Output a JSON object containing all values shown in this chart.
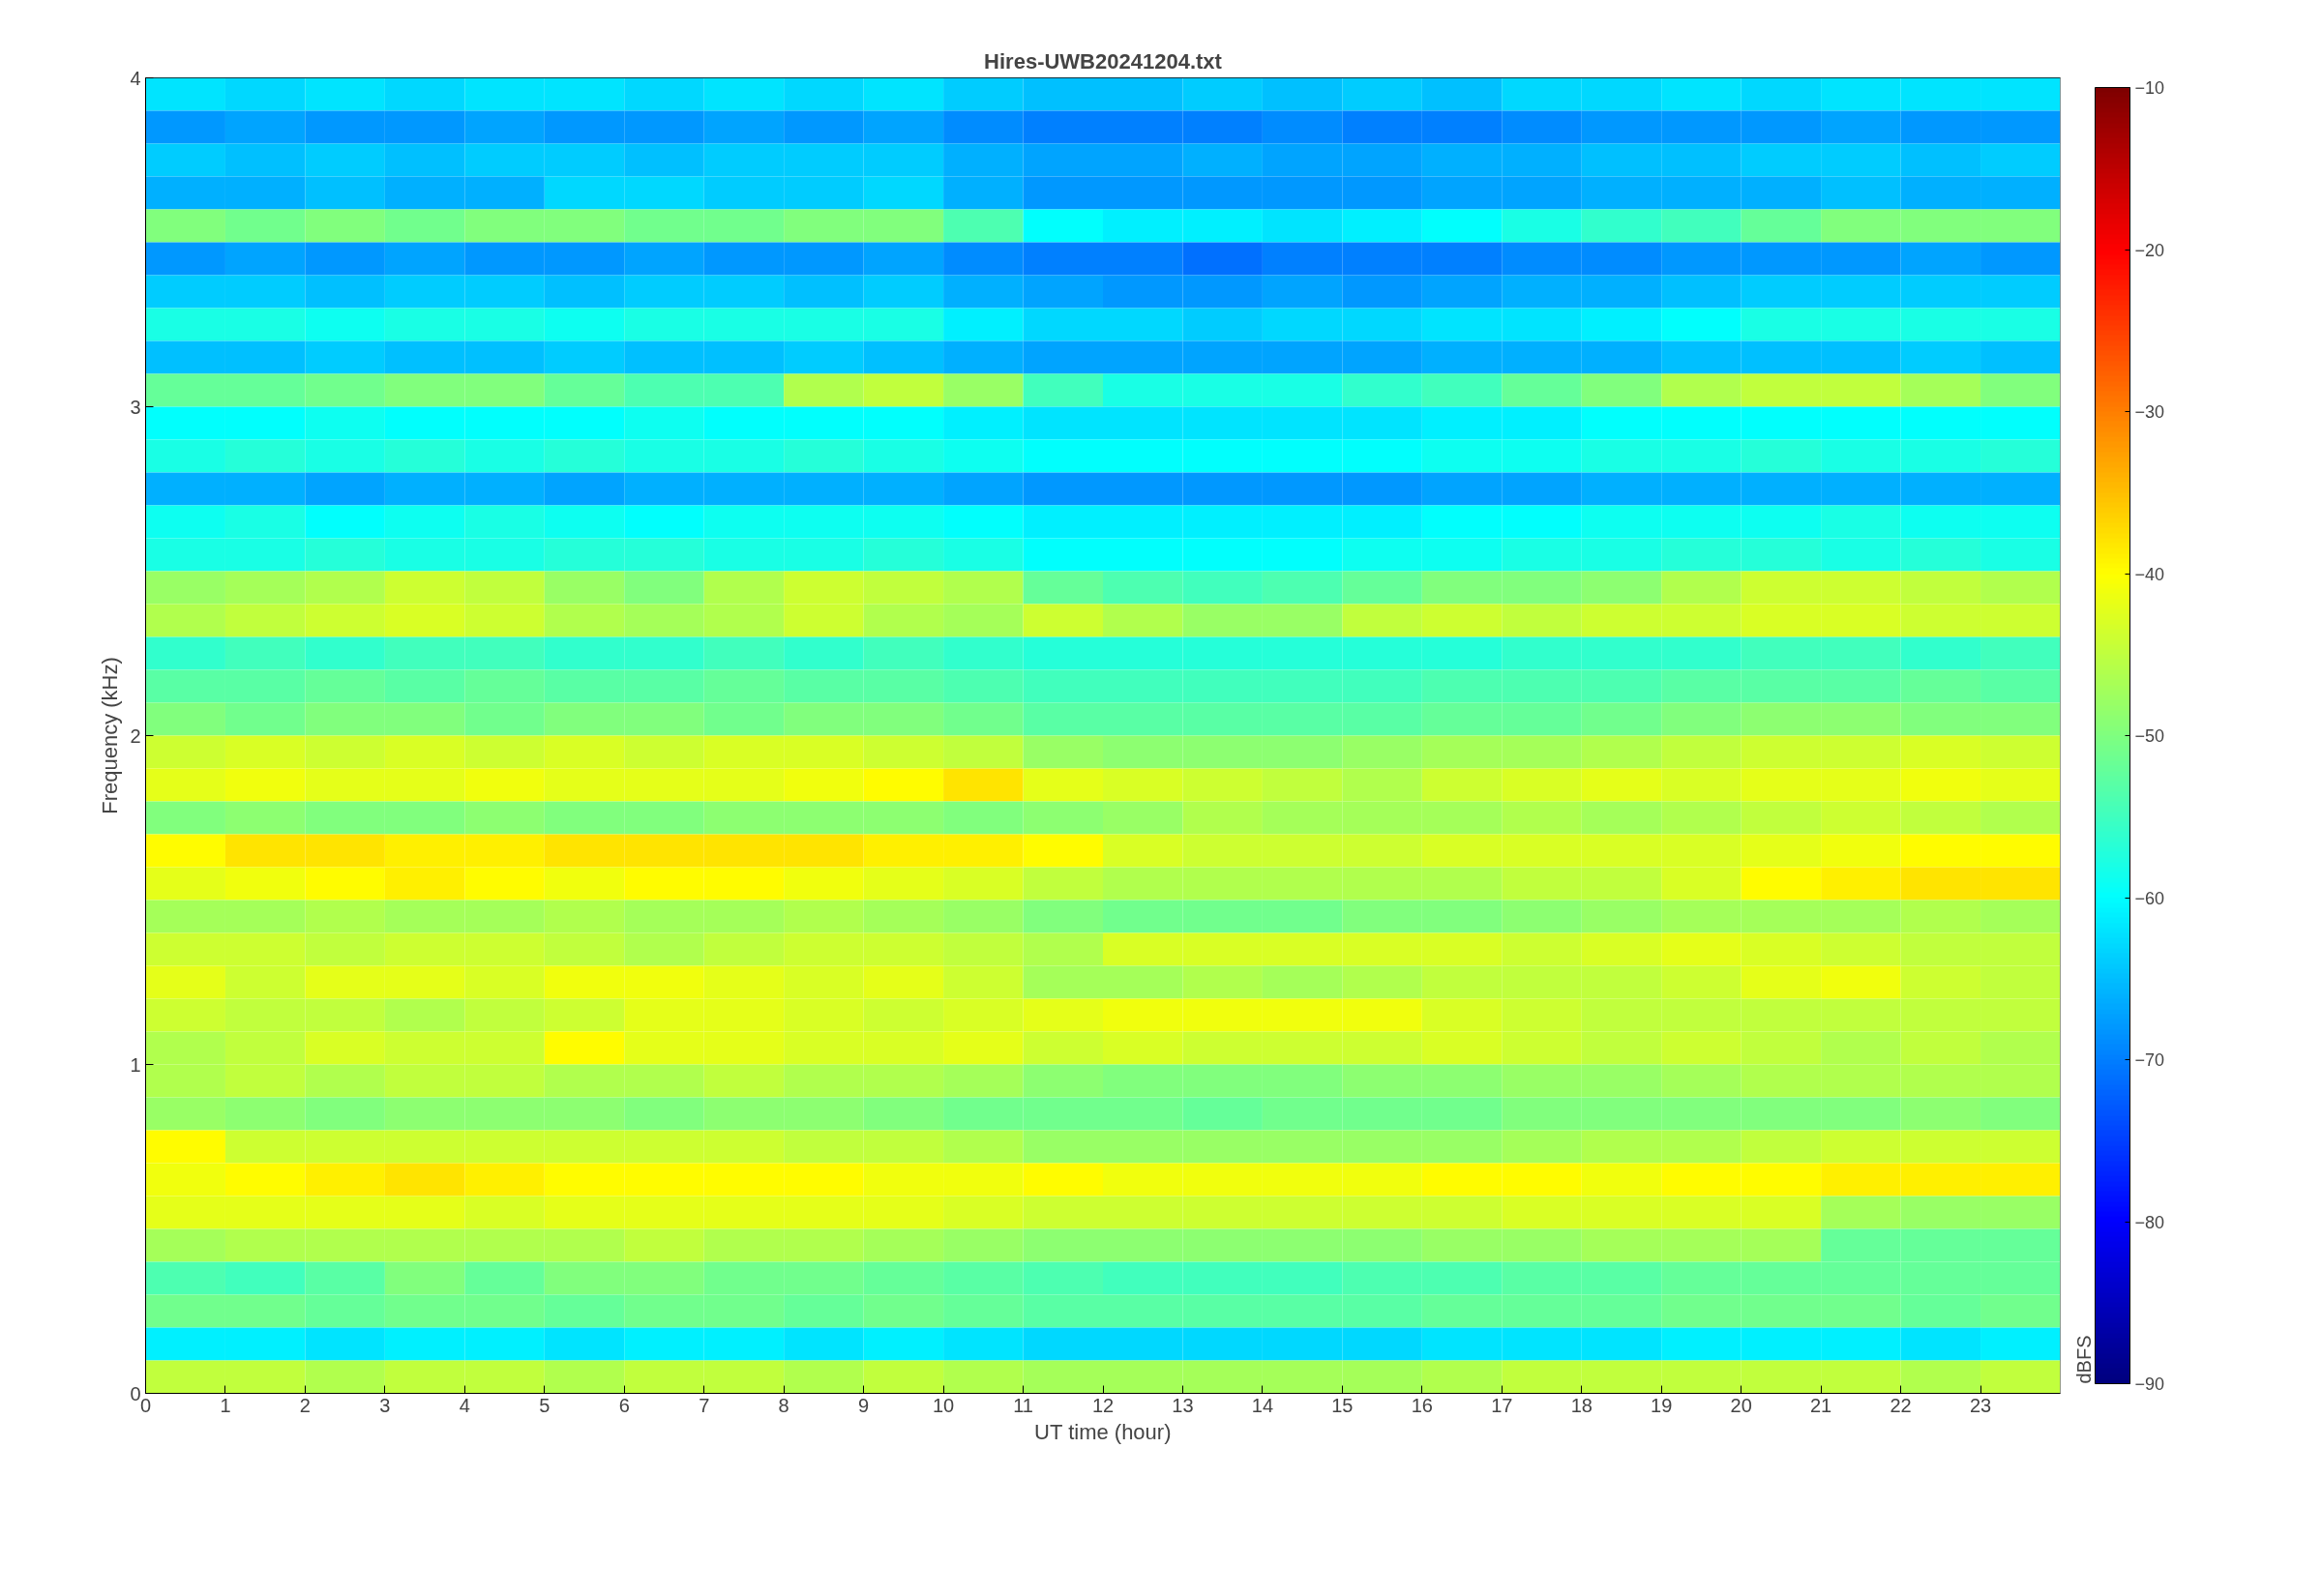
{
  "chart_data": {
    "type": "heatmap",
    "title": "Hires-UWB20241204.txt",
    "xlabel": "UT time (hour)",
    "ylabel": "Frequency (kHz)",
    "clabel": "dBFS",
    "x": [
      0.5,
      1.5,
      2.5,
      3.5,
      4.5,
      5.5,
      6.5,
      7.5,
      8.5,
      9.5,
      10.5,
      11.5,
      12.5,
      13.5,
      14.5,
      15.5,
      16.5,
      17.5,
      18.5,
      19.5,
      20.5,
      21.5,
      22.5,
      23.5
    ],
    "xlim": [
      0,
      24
    ],
    "xticks": [
      0,
      1,
      2,
      3,
      4,
      5,
      6,
      7,
      8,
      9,
      10,
      11,
      12,
      13,
      14,
      15,
      16,
      17,
      18,
      19,
      20,
      21,
      22,
      23
    ],
    "ylim": [
      0,
      4
    ],
    "yticks": [
      0,
      1,
      2,
      3,
      4
    ],
    "clim": [
      -90,
      -10
    ],
    "cticks": [
      -90,
      -80,
      -70,
      -60,
      -50,
      -40,
      -30,
      -20,
      -10
    ],
    "grid": false,
    "cells": [
      [
        -62,
        -63,
        -62,
        -63,
        -62,
        -62,
        -63,
        -62,
        -63,
        -62,
        -64,
        -65,
        -65,
        -64,
        -65,
        -64,
        -65,
        -63,
        -63,
        -62,
        -63,
        -62,
        -62,
        -62
      ],
      [
        -68,
        -67,
        -68,
        -68,
        -67,
        -68,
        -68,
        -67,
        -68,
        -67,
        -69,
        -70,
        -70,
        -70,
        -69,
        -70,
        -70,
        -69,
        -68,
        -68,
        -68,
        -67,
        -68,
        -68
      ],
      [
        -64,
        -65,
        -64,
        -65,
        -64,
        -64,
        -65,
        -64,
        -64,
        -64,
        -66,
        -67,
        -67,
        -66,
        -67,
        -67,
        -66,
        -66,
        -65,
        -65,
        -64,
        -64,
        -65,
        -64
      ],
      [
        -66,
        -66,
        -65,
        -66,
        -66,
        -63,
        -63,
        -64,
        -64,
        -63,
        -66,
        -68,
        -68,
        -68,
        -68,
        -68,
        -67,
        -67,
        -66,
        -66,
        -66,
        -65,
        -66,
        -66
      ],
      [
        -50,
        -51,
        -50,
        -51,
        -50,
        -50,
        -51,
        -51,
        -50,
        -50,
        -54,
        -60,
        -61,
        -61,
        -62,
        -61,
        -60,
        -58,
        -56,
        -55,
        -52,
        -50,
        -50,
        -50
      ],
      [
        -68,
        -67,
        -68,
        -67,
        -68,
        -68,
        -67,
        -68,
        -68,
        -67,
        -69,
        -70,
        -70,
        -71,
        -70,
        -70,
        -70,
        -69,
        -69,
        -68,
        -68,
        -68,
        -67,
        -68
      ],
      [
        -64,
        -64,
        -65,
        -64,
        -64,
        -65,
        -64,
        -64,
        -65,
        -64,
        -66,
        -67,
        -68,
        -68,
        -67,
        -68,
        -67,
        -66,
        -66,
        -65,
        -64,
        -64,
        -64,
        -64
      ],
      [
        -58,
        -58,
        -59,
        -58,
        -58,
        -59,
        -58,
        -58,
        -58,
        -58,
        -61,
        -63,
        -63,
        -64,
        -63,
        -63,
        -62,
        -62,
        -61,
        -60,
        -58,
        -58,
        -58,
        -58
      ],
      [
        -65,
        -65,
        -64,
        -65,
        -65,
        -64,
        -65,
        -65,
        -64,
        -65,
        -66,
        -67,
        -67,
        -67,
        -67,
        -67,
        -66,
        -66,
        -66,
        -65,
        -65,
        -65,
        -64,
        -65
      ],
      [
        -52,
        -52,
        -51,
        -50,
        -50,
        -52,
        -54,
        -54,
        -46,
        -45,
        -48,
        -55,
        -58,
        -58,
        -58,
        -56,
        -55,
        -52,
        -50,
        -46,
        -45,
        -45,
        -47,
        -50
      ],
      [
        -60,
        -60,
        -59,
        -60,
        -60,
        -60,
        -59,
        -60,
        -60,
        -60,
        -61,
        -62,
        -62,
        -62,
        -62,
        -62,
        -61,
        -61,
        -60,
        -60,
        -60,
        -60,
        -60,
        -60
      ],
      [
        -58,
        -57,
        -58,
        -57,
        -58,
        -57,
        -58,
        -58,
        -57,
        -58,
        -59,
        -60,
        -60,
        -60,
        -60,
        -60,
        -59,
        -59,
        -58,
        -58,
        -57,
        -58,
        -58,
        -57
      ],
      [
        -66,
        -66,
        -67,
        -66,
        -66,
        -67,
        -66,
        -66,
        -66,
        -66,
        -67,
        -68,
        -68,
        -68,
        -68,
        -68,
        -67,
        -67,
        -66,
        -66,
        -66,
        -66,
        -66,
        -66
      ],
      [
        -59,
        -58,
        -60,
        -59,
        -58,
        -59,
        -60,
        -59,
        -59,
        -59,
        -60,
        -61,
        -61,
        -61,
        -61,
        -61,
        -60,
        -60,
        -59,
        -59,
        -59,
        -58,
        -59,
        -59
      ],
      [
        -58,
        -58,
        -57,
        -58,
        -58,
        -57,
        -57,
        -58,
        -58,
        -57,
        -58,
        -60,
        -60,
        -60,
        -60,
        -59,
        -59,
        -58,
        -58,
        -57,
        -57,
        -58,
        -57,
        -58
      ],
      [
        -48,
        -47,
        -46,
        -44,
        -45,
        -48,
        -50,
        -46,
        -44,
        -45,
        -46,
        -52,
        -54,
        -55,
        -54,
        -52,
        -50,
        -50,
        -49,
        -46,
        -44,
        -44,
        -45,
        -46
      ],
      [
        -46,
        -45,
        -44,
        -43,
        -44,
        -46,
        -47,
        -46,
        -44,
        -46,
        -47,
        -44,
        -46,
        -48,
        -48,
        -45,
        -44,
        -45,
        -44,
        -44,
        -43,
        -43,
        -44,
        -44
      ],
      [
        -56,
        -55,
        -56,
        -55,
        -55,
        -56,
        -56,
        -55,
        -56,
        -55,
        -56,
        -57,
        -57,
        -57,
        -57,
        -57,
        -57,
        -56,
        -56,
        -56,
        -55,
        -55,
        -56,
        -55
      ],
      [
        -53,
        -53,
        -52,
        -53,
        -52,
        -53,
        -53,
        -52,
        -53,
        -53,
        -54,
        -55,
        -55,
        -55,
        -55,
        -55,
        -54,
        -54,
        -54,
        -53,
        -53,
        -53,
        -52,
        -53
      ],
      [
        -50,
        -51,
        -50,
        -50,
        -51,
        -50,
        -50,
        -51,
        -50,
        -50,
        -51,
        -53,
        -53,
        -53,
        -53,
        -53,
        -52,
        -52,
        -51,
        -50,
        -49,
        -49,
        -50,
        -50
      ],
      [
        -44,
        -43,
        -44,
        -43,
        -44,
        -43,
        -44,
        -43,
        -43,
        -44,
        -45,
        -48,
        -49,
        -49,
        -49,
        -48,
        -47,
        -47,
        -46,
        -45,
        -44,
        -44,
        -43,
        -44
      ],
      [
        -42,
        -41,
        -42,
        -42,
        -41,
        -42,
        -42,
        -42,
        -41,
        -40,
        -38,
        -42,
        -43,
        -44,
        -45,
        -46,
        -44,
        -43,
        -42,
        -43,
        -42,
        -42,
        -41,
        -42
      ],
      [
        -50,
        -49,
        -50,
        -50,
        -49,
        -50,
        -50,
        -49,
        -49,
        -49,
        -50,
        -49,
        -48,
        -46,
        -47,
        -47,
        -47,
        -46,
        -47,
        -46,
        -45,
        -44,
        -45,
        -46
      ],
      [
        -40,
        -38,
        -38,
        -39,
        -39,
        -38,
        -38,
        -38,
        -38,
        -39,
        -39,
        -40,
        -43,
        -44,
        -44,
        -44,
        -43,
        -43,
        -43,
        -43,
        -42,
        -41,
        -40,
        -40
      ],
      [
        -42,
        -41,
        -40,
        -39,
        -40,
        -41,
        -40,
        -40,
        -41,
        -42,
        -43,
        -45,
        -46,
        -46,
        -46,
        -46,
        -46,
        -45,
        -45,
        -43,
        -40,
        -39,
        -38,
        -38
      ],
      [
        -47,
        -47,
        -46,
        -47,
        -47,
        -46,
        -47,
        -47,
        -46,
        -47,
        -48,
        -50,
        -51,
        -51,
        -51,
        -50,
        -50,
        -49,
        -48,
        -47,
        -47,
        -47,
        -46,
        -47
      ],
      [
        -44,
        -44,
        -45,
        -44,
        -44,
        -45,
        -46,
        -45,
        -44,
        -44,
        -45,
        -46,
        -43,
        -43,
        -43,
        -43,
        -43,
        -44,
        -43,
        -42,
        -43,
        -44,
        -45,
        -45
      ],
      [
        -42,
        -44,
        -42,
        -42,
        -43,
        -41,
        -41,
        -42,
        -43,
        -42,
        -44,
        -47,
        -47,
        -46,
        -47,
        -46,
        -45,
        -45,
        -45,
        -44,
        -42,
        -41,
        -44,
        -45
      ],
      [
        -44,
        -45,
        -45,
        -46,
        -45,
        -44,
        -42,
        -42,
        -43,
        -44,
        -43,
        -42,
        -41,
        -41,
        -41,
        -41,
        -43,
        -44,
        -45,
        -45,
        -45,
        -45,
        -45,
        -45
      ],
      [
        -46,
        -45,
        -43,
        -44,
        -44,
        -40,
        -42,
        -42,
        -43,
        -43,
        -42,
        -44,
        -43,
        -44,
        -44,
        -44,
        -43,
        -44,
        -45,
        -44,
        -45,
        -46,
        -45,
        -46
      ],
      [
        -46,
        -45,
        -46,
        -45,
        -45,
        -46,
        -46,
        -45,
        -46,
        -46,
        -47,
        -49,
        -50,
        -50,
        -50,
        -49,
        -49,
        -48,
        -48,
        -47,
        -46,
        -46,
        -46,
        -46
      ],
      [
        -48,
        -49,
        -50,
        -49,
        -49,
        -49,
        -50,
        -49,
        -49,
        -50,
        -51,
        -51,
        -51,
        -52,
        -51,
        -51,
        -51,
        -50,
        -50,
        -50,
        -50,
        -50,
        -49,
        -50
      ],
      [
        -40,
        -44,
        -44,
        -44,
        -44,
        -44,
        -44,
        -44,
        -45,
        -45,
        -46,
        -48,
        -48,
        -48,
        -48,
        -48,
        -48,
        -47,
        -46,
        -46,
        -45,
        -44,
        -44,
        -44
      ],
      [
        -41,
        -40,
        -39,
        -38,
        -39,
        -40,
        -40,
        -40,
        -40,
        -41,
        -41,
        -40,
        -41,
        -41,
        -41,
        -41,
        -40,
        -40,
        -41,
        -40,
        -40,
        -39,
        -39,
        -39
      ],
      [
        -42,
        -42,
        -42,
        -42,
        -43,
        -42,
        -42,
        -42,
        -42,
        -42,
        -43,
        -44,
        -44,
        -44,
        -44,
        -44,
        -44,
        -43,
        -43,
        -43,
        -43,
        -47,
        -48,
        -48
      ],
      [
        -47,
        -46,
        -46,
        -46,
        -46,
        -46,
        -45,
        -46,
        -46,
        -47,
        -48,
        -49,
        -49,
        -49,
        -49,
        -49,
        -48,
        -48,
        -47,
        -47,
        -47,
        -52,
        -52,
        -52
      ],
      [
        -54,
        -55,
        -53,
        -50,
        -52,
        -50,
        -50,
        -51,
        -51,
        -52,
        -53,
        -54,
        -55,
        -55,
        -55,
        -54,
        -54,
        -53,
        -53,
        -52,
        -52,
        -52,
        -52,
        -52
      ],
      [
        -51,
        -51,
        -52,
        -51,
        -51,
        -52,
        -51,
        -51,
        -52,
        -51,
        -52,
        -53,
        -53,
        -53,
        -53,
        -53,
        -52,
        -52,
        -52,
        -51,
        -51,
        -51,
        -52,
        -51
      ],
      [
        -61,
        -61,
        -62,
        -61,
        -61,
        -62,
        -61,
        -61,
        -62,
        -61,
        -62,
        -63,
        -63,
        -63,
        -63,
        -63,
        -62,
        -62,
        -62,
        -61,
        -61,
        -61,
        -62,
        -61
      ],
      [
        -45,
        -45,
        -46,
        -45,
        -45,
        -46,
        -45,
        -45,
        -46,
        -45,
        -46,
        -47,
        -47,
        -47,
        -47,
        -47,
        -46,
        -45,
        -45,
        -45,
        -45,
        -45,
        -46,
        -45
      ]
    ]
  }
}
